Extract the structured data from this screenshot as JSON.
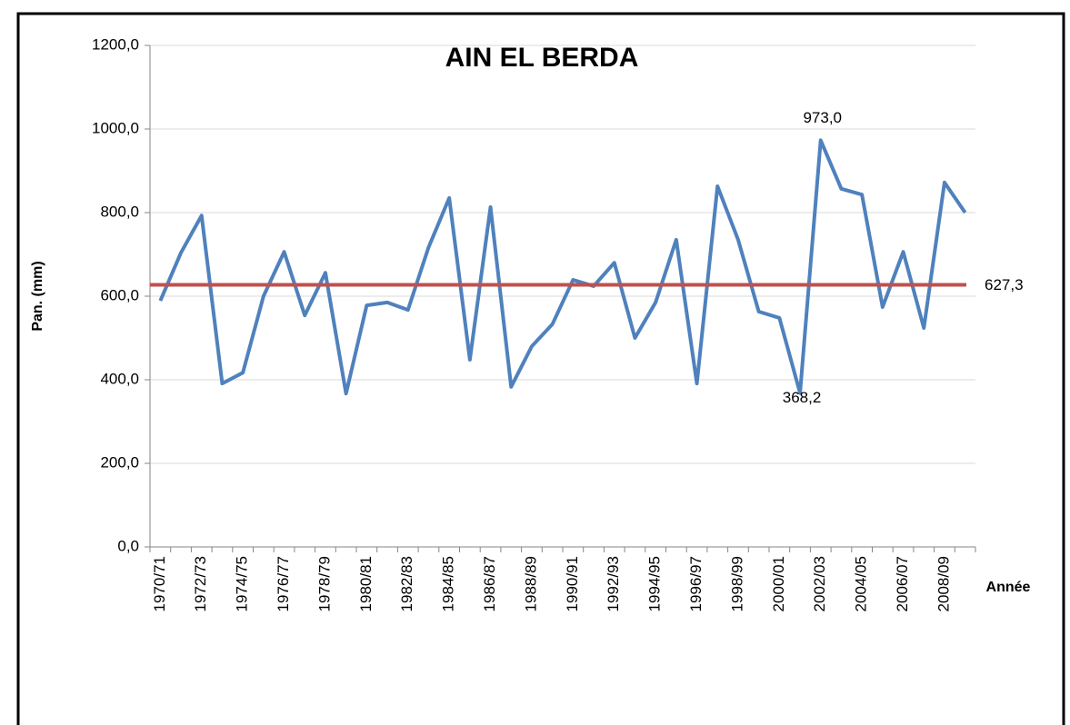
{
  "chart_data": {
    "type": "line",
    "title": "AIN EL BERDA",
    "y_label": "Pan. (mm)",
    "x_label": "Année",
    "categories": [
      "1970/71",
      null,
      "1972/73",
      null,
      "1974/75",
      null,
      "1976/77",
      null,
      "1978/79",
      null,
      "1980/81",
      null,
      "1982/83",
      null,
      "1984/85",
      null,
      "1986/87",
      null,
      "1988/89",
      null,
      "1990/91",
      null,
      "1992/93",
      null,
      "1994/95",
      null,
      "1996/97",
      null,
      "1998/99",
      null,
      "2000/01",
      null,
      "2002/03",
      null,
      "2004/05",
      null,
      "2006/07",
      null,
      "2008/09",
      null
    ],
    "series": [
      {
        "color": "#4f81bd",
        "values": [
          589,
          704,
          793,
          391,
          417,
          600,
          706,
          554,
          656,
          367,
          578,
          585,
          567,
          717,
          835,
          448,
          813,
          383,
          480,
          533,
          639,
          624,
          680,
          500,
          585,
          735,
          391,
          863,
          735,
          563,
          548,
          368.2,
          973,
          857,
          843,
          574,
          706,
          524,
          872,
          800
        ],
        "value_labels": [
          null,
          null,
          null,
          null,
          null,
          null,
          null,
          null,
          null,
          null,
          null,
          null,
          null,
          null,
          null,
          null,
          null,
          null,
          null,
          null,
          null,
          null,
          null,
          null,
          null,
          null,
          null,
          null,
          null,
          null,
          null,
          "368,2",
          "973,0",
          null,
          null,
          null,
          null,
          null,
          null,
          null
        ]
      }
    ],
    "mean_line": {
      "value": 627.3,
      "label": "627,3",
      "color": "#c0504d",
      "label_color": "#ff0000"
    },
    "ylim": [
      0,
      1200
    ],
    "yticks": [
      {
        "value": 0,
        "label": "0,0"
      },
      {
        "value": 200,
        "label": "200,0"
      },
      {
        "value": 400,
        "label": "400,0"
      },
      {
        "value": 600,
        "label": "600,0"
      },
      {
        "value": 800,
        "label": "800,0"
      },
      {
        "value": 1000,
        "label": "1000,0"
      },
      {
        "value": 1200,
        "label": "1200,0"
      }
    ],
    "grid": true
  }
}
